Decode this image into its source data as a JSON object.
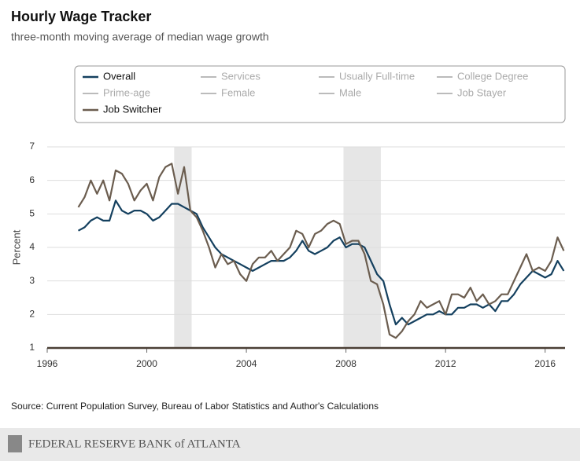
{
  "chart_data": {
    "type": "line",
    "title": "Hourly Wage Tracker",
    "subtitle": "three-month moving average of median wage growth",
    "y_label": "Percent",
    "source": "Source: Current Population Survey, Bureau of Labor Statistics and Author's Calculations",
    "footer": "FEDERAL RESERVE BANK of ATLANTA",
    "xlim": [
      1996,
      2016.8
    ],
    "xticks": [
      1996,
      2000,
      2004,
      2008,
      2012,
      2016
    ],
    "ylim": [
      1,
      7
    ],
    "yticks": [
      1,
      2,
      3,
      4,
      5,
      6,
      7
    ],
    "grid": true,
    "shaded_periods": [
      [
        2001.1,
        2001.8
      ],
      [
        2007.9,
        2009.4
      ]
    ],
    "x": [
      1997.25,
      1997.5,
      1997.75,
      1998,
      1998.25,
      1998.5,
      1998.75,
      1999,
      1999.25,
      1999.5,
      1999.75,
      2000,
      2000.25,
      2000.5,
      2000.75,
      2001,
      2001.25,
      2001.5,
      2001.75,
      2002,
      2002.25,
      2002.5,
      2002.75,
      2003,
      2003.25,
      2003.5,
      2003.75,
      2004,
      2004.25,
      2004.5,
      2004.75,
      2005,
      2005.25,
      2005.5,
      2005.75,
      2006,
      2006.25,
      2006.5,
      2006.75,
      2007,
      2007.25,
      2007.5,
      2007.75,
      2008,
      2008.25,
      2008.5,
      2008.75,
      2009,
      2009.25,
      2009.5,
      2009.75,
      2010,
      2010.25,
      2010.5,
      2010.75,
      2011,
      2011.25,
      2011.5,
      2011.75,
      2012,
      2012.25,
      2012.5,
      2012.75,
      2013,
      2013.25,
      2013.5,
      2013.75,
      2014,
      2014.25,
      2014.5,
      2014.75,
      2015,
      2015.25,
      2015.5,
      2015.75,
      2016,
      2016.25,
      2016.5,
      2016.75
    ],
    "series": [
      {
        "name": "Overall",
        "color": "#14405f",
        "visible": true,
        "values": [
          4.5,
          4.6,
          4.8,
          4.9,
          4.8,
          4.8,
          5.4,
          5.1,
          5.0,
          5.1,
          5.1,
          5.0,
          4.8,
          4.9,
          5.1,
          5.3,
          5.3,
          5.2,
          5.1,
          5.0,
          4.6,
          4.3,
          4.0,
          3.8,
          3.7,
          3.6,
          3.5,
          3.4,
          3.3,
          3.4,
          3.5,
          3.6,
          3.6,
          3.6,
          3.7,
          3.9,
          4.2,
          3.9,
          3.8,
          3.9,
          4.0,
          4.2,
          4.3,
          4.0,
          4.1,
          4.1,
          4.0,
          3.6,
          3.2,
          3.0,
          2.3,
          1.7,
          1.9,
          1.7,
          1.8,
          1.9,
          2.0,
          2.0,
          2.1,
          2.0,
          2.0,
          2.2,
          2.2,
          2.3,
          2.3,
          2.2,
          2.3,
          2.1,
          2.4,
          2.4,
          2.6,
          2.9,
          3.1,
          3.3,
          3.2,
          3.1,
          3.2,
          3.6,
          3.3
        ]
      },
      {
        "name": "Services",
        "color": "#bbbbbb",
        "visible": false,
        "values": null
      },
      {
        "name": "Usually Full-time",
        "color": "#bbbbbb",
        "visible": false,
        "values": null
      },
      {
        "name": "College Degree",
        "color": "#bbbbbb",
        "visible": false,
        "values": null
      },
      {
        "name": "Prime-age",
        "color": "#bbbbbb",
        "visible": false,
        "values": null
      },
      {
        "name": "Female",
        "color": "#bbbbbb",
        "visible": false,
        "values": null
      },
      {
        "name": "Male",
        "color": "#bbbbbb",
        "visible": false,
        "values": null
      },
      {
        "name": "Job Stayer",
        "color": "#bbbbbb",
        "visible": false,
        "values": null
      },
      {
        "name": "Job Switcher",
        "color": "#6b5d4f",
        "visible": true,
        "values": [
          5.2,
          5.5,
          6.0,
          5.6,
          6.0,
          5.4,
          6.3,
          6.2,
          5.9,
          5.4,
          5.7,
          5.9,
          5.4,
          6.1,
          6.4,
          6.5,
          5.6,
          6.4,
          5.1,
          4.9,
          4.5,
          4.0,
          3.4,
          3.8,
          3.5,
          3.6,
          3.2,
          3.0,
          3.5,
          3.7,
          3.7,
          3.9,
          3.6,
          3.8,
          4.0,
          4.5,
          4.4,
          4.0,
          4.4,
          4.5,
          4.7,
          4.8,
          4.7,
          4.1,
          4.2,
          4.2,
          3.8,
          3.0,
          2.9,
          2.3,
          1.4,
          1.3,
          1.5,
          1.8,
          2.0,
          2.4,
          2.2,
          2.3,
          2.4,
          2.0,
          2.6,
          2.6,
          2.5,
          2.8,
          2.4,
          2.6,
          2.3,
          2.4,
          2.6,
          2.6,
          3.0,
          3.4,
          3.8,
          3.3,
          3.4,
          3.3,
          3.6,
          4.3,
          3.9
        ]
      }
    ]
  }
}
